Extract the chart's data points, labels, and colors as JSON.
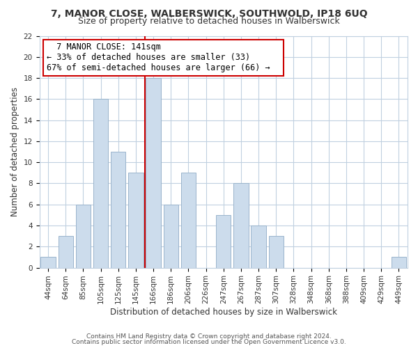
{
  "title": "7, MANOR CLOSE, WALBERSWICK, SOUTHWOLD, IP18 6UQ",
  "subtitle": "Size of property relative to detached houses in Walberswick",
  "xlabel": "Distribution of detached houses by size in Walberswick",
  "ylabel": "Number of detached properties",
  "bar_labels": [
    "44sqm",
    "64sqm",
    "85sqm",
    "105sqm",
    "125sqm",
    "145sqm",
    "166sqm",
    "186sqm",
    "206sqm",
    "226sqm",
    "247sqm",
    "267sqm",
    "287sqm",
    "307sqm",
    "328sqm",
    "348sqm",
    "368sqm",
    "388sqm",
    "409sqm",
    "429sqm",
    "449sqm"
  ],
  "bar_values": [
    1,
    3,
    6,
    16,
    11,
    9,
    18,
    6,
    9,
    0,
    5,
    8,
    4,
    3,
    0,
    0,
    0,
    0,
    0,
    0,
    1
  ],
  "bar_color": "#ccdcec",
  "bar_edge_color": "#9ab4cc",
  "vline_color": "#cc0000",
  "annotation_title": "7 MANOR CLOSE: 141sqm",
  "annotation_line1": "← 33% of detached houses are smaller (33)",
  "annotation_line2": "67% of semi-detached houses are larger (66) →",
  "annotation_box_color": "#ffffff",
  "annotation_box_edge": "#cc0000",
  "ylim": [
    0,
    22
  ],
  "yticks": [
    0,
    2,
    4,
    6,
    8,
    10,
    12,
    14,
    16,
    18,
    20,
    22
  ],
  "footer1": "Contains HM Land Registry data © Crown copyright and database right 2024.",
  "footer2": "Contains public sector information licensed under the Open Government Licence v3.0.",
  "bg_color": "#ffffff",
  "grid_color": "#c0d0e0",
  "title_fontsize": 10,
  "subtitle_fontsize": 9,
  "tick_fontsize": 7.5,
  "axis_label_fontsize": 8.5,
  "ann_fontsize": 8.5,
  "footer_fontsize": 6.5
}
